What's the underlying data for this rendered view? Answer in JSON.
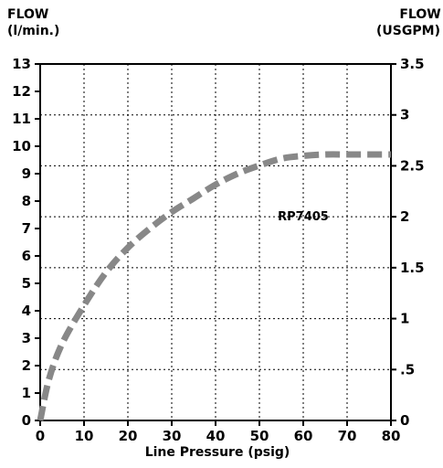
{
  "chart_data": {
    "type": "line",
    "title": "",
    "xlabel": "Line Pressure (psig)",
    "ylabel_left": [
      "FLOW",
      "(l/min.)"
    ],
    "ylabel_right": [
      "FLOW",
      "(USGPM)"
    ],
    "xlim": [
      0,
      80
    ],
    "ylim_left": [
      0,
      13
    ],
    "ylim_right": [
      0,
      3.5
    ],
    "x_ticks": [
      "0",
      "10",
      "20",
      "30",
      "40",
      "50",
      "60",
      "70",
      "80"
    ],
    "y_left_ticks": [
      "0",
      "1",
      "2",
      "3",
      "4",
      "5",
      "6",
      "7",
      "8",
      "9",
      "10",
      "11",
      "12",
      "13"
    ],
    "y_right_ticks": [
      "0",
      ".5",
      "1",
      "1.5",
      "2",
      "2.5",
      "3",
      "3.5"
    ],
    "grid": true,
    "series": [
      {
        "name": "RP7405",
        "x": [
          0,
          2,
          5,
          10,
          15,
          20,
          25,
          30,
          35,
          40,
          45,
          50,
          55,
          60,
          65,
          70,
          75,
          80
        ],
        "y": [
          0,
          1.5,
          2.8,
          4.2,
          5.4,
          6.3,
          7.0,
          7.6,
          8.1,
          8.6,
          9.0,
          9.3,
          9.55,
          9.65,
          9.7,
          9.7,
          9.7,
          9.7
        ]
      }
    ],
    "annotation": {
      "text": "RP7405",
      "x": 60,
      "y": 7.3
    },
    "line_color": "#888888"
  }
}
